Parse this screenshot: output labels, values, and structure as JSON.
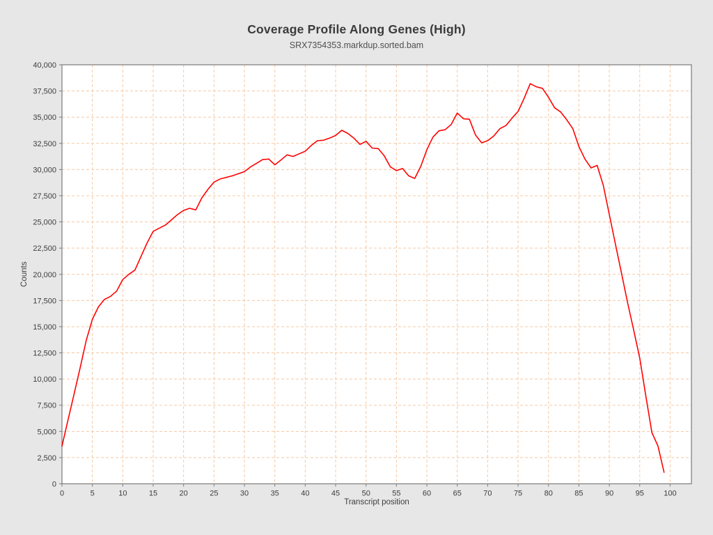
{
  "header": {
    "title": "Coverage Profile Along Genes (High)",
    "subtitle": "SRX7354353.markdup.sorted.bam"
  },
  "chart_data": {
    "type": "line",
    "title": "Coverage Profile Along Genes (High)",
    "subtitle": "SRX7354353.markdup.sorted.bam",
    "xlabel": "Transcript position",
    "ylabel": "Counts",
    "xlim": [
      0,
      103.5
    ],
    "ylim": [
      0,
      40000
    ],
    "grid": true,
    "legend": "none",
    "x_ticks": [
      0,
      5,
      10,
      15,
      20,
      25,
      30,
      35,
      40,
      45,
      50,
      55,
      60,
      65,
      70,
      75,
      80,
      85,
      90,
      95,
      100
    ],
    "y_ticks": [
      0,
      2500,
      5000,
      7500,
      10000,
      12500,
      15000,
      17500,
      20000,
      22500,
      25000,
      27500,
      30000,
      32500,
      35000,
      37500,
      40000
    ],
    "colors": {
      "line": "#ff0000",
      "grid": "#f5c8a2",
      "axis": "#7a7a7a",
      "tick_text": "#3d3d3d",
      "plot_background": "#ffffff",
      "page_background": "#e7e7e7"
    },
    "x": [
      0,
      1,
      2,
      3,
      4,
      5,
      6,
      7,
      8,
      9,
      10,
      11,
      12,
      13,
      14,
      15,
      16,
      17,
      18,
      19,
      20,
      21,
      22,
      23,
      24,
      25,
      26,
      27,
      28,
      29,
      30,
      31,
      32,
      33,
      34,
      35,
      36,
      37,
      38,
      39,
      40,
      41,
      42,
      43,
      44,
      45,
      46,
      47,
      48,
      49,
      50,
      51,
      52,
      53,
      54,
      55,
      56,
      57,
      58,
      59,
      60,
      61,
      62,
      63,
      64,
      65,
      66,
      67,
      68,
      69,
      70,
      71,
      72,
      73,
      74,
      75,
      76,
      77,
      78,
      79,
      80,
      81,
      82,
      83,
      84,
      85,
      86,
      87,
      88,
      89,
      90,
      91,
      92,
      93,
      94,
      95,
      96,
      97,
      98,
      99
    ],
    "series": [
      {
        "name": "SRX7354353.markdup.sorted.bam",
        "color": "#ff0000",
        "values": [
          3600,
          6100,
          8600,
          11100,
          13700,
          15700,
          16900,
          17600,
          17900,
          18400,
          19500,
          20000,
          20400,
          21700,
          23000,
          24100,
          24400,
          24700,
          25200,
          25700,
          26100,
          26300,
          26150,
          27300,
          28100,
          28800,
          29100,
          29250,
          29400,
          29600,
          29800,
          30250,
          30600,
          30950,
          31000,
          30450,
          30900,
          31400,
          31250,
          31500,
          31750,
          32300,
          32750,
          32800,
          33000,
          33250,
          33750,
          33450,
          33000,
          32400,
          32700,
          32050,
          32000,
          31300,
          30250,
          29900,
          30100,
          29400,
          29150,
          30300,
          31900,
          33100,
          33700,
          33800,
          34300,
          35400,
          34850,
          34800,
          33300,
          32550,
          32750,
          33200,
          33900,
          34200,
          34900,
          35550,
          36800,
          38200,
          37900,
          37750,
          36900,
          35900,
          35500,
          34750,
          33900,
          32200,
          31000,
          30150,
          30400,
          28500,
          25700,
          22900,
          20100,
          17300,
          14700,
          12000,
          8400,
          4900,
          3600,
          1100
        ]
      }
    ]
  }
}
